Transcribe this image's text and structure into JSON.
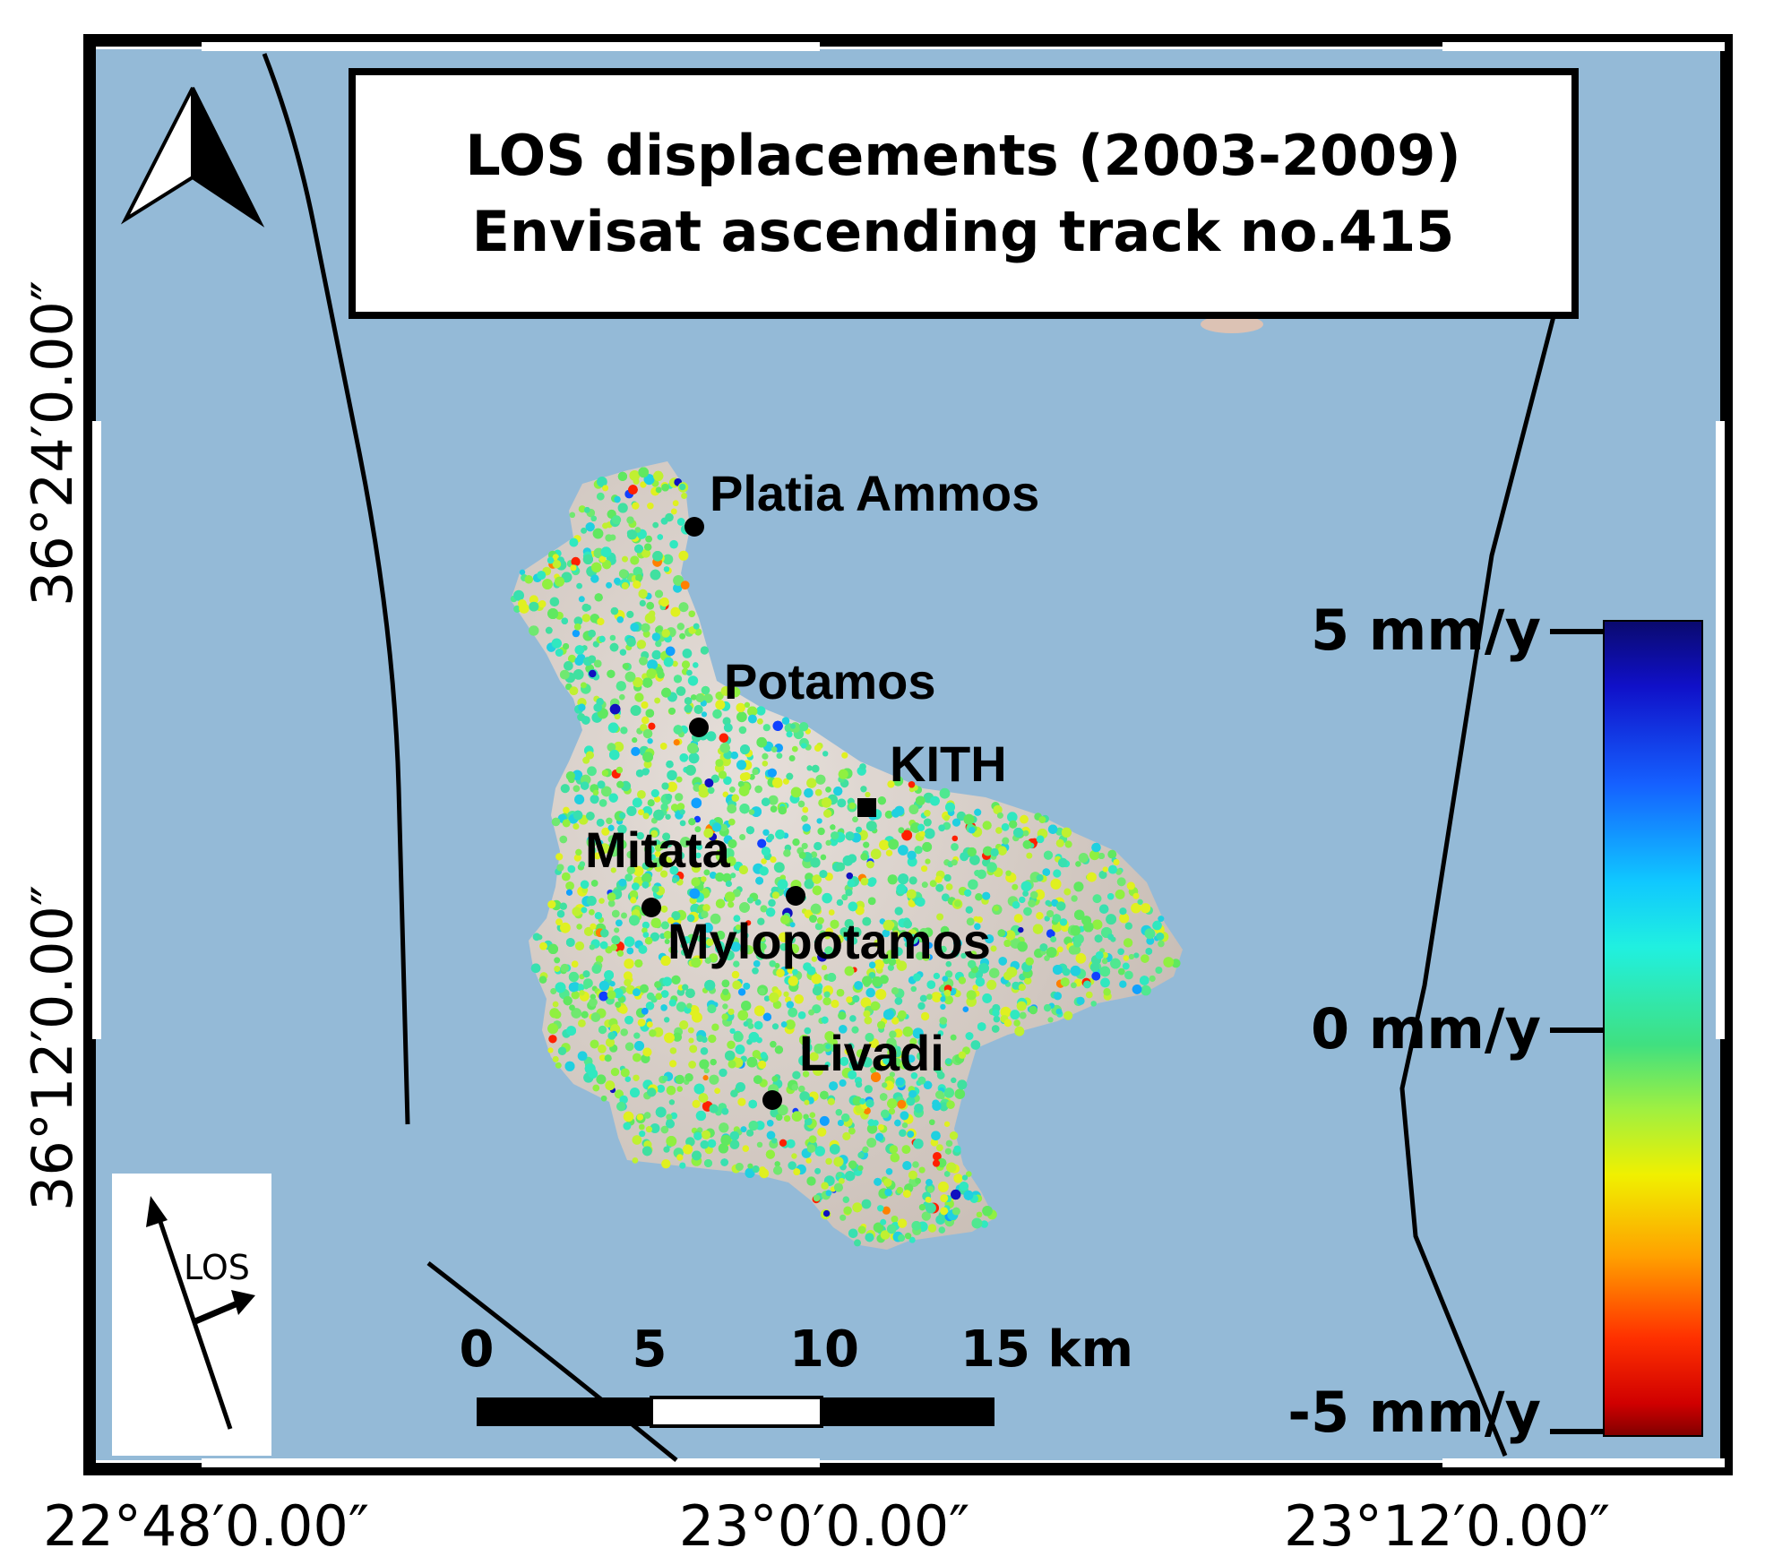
{
  "title": {
    "line1": "LOS displacements (2003-2009)",
    "line2": "Envisat ascending track no.415"
  },
  "colors": {
    "sea": "#94bad7",
    "frame": "#000000",
    "land_relief": "#d8cfc8"
  },
  "places": [
    {
      "name": "Platia Ammos",
      "marker": "circle"
    },
    {
      "name": "Potamos",
      "marker": "circle"
    },
    {
      "name": "KITH",
      "marker": "square"
    },
    {
      "name": "Mitata",
      "marker": "circle"
    },
    {
      "name": "Mylopotamos",
      "marker": "circle"
    },
    {
      "name": "Livadi",
      "marker": "circle"
    }
  ],
  "colorbar": {
    "max_label": "5 mm/y",
    "mid_label": "0 mm/y",
    "min_label": "-5 mm/y",
    "range": [
      -5,
      5
    ],
    "unit": "mm/y",
    "colormap": "jet reversed (blue = +5, red = -5)"
  },
  "scale_bar": {
    "ticks": [
      "0",
      "5",
      "10",
      "15 km"
    ]
  },
  "los_inset": {
    "label": "LOS"
  },
  "north_arrow": "north-arrow-icon",
  "coordinates": {
    "lon_labels": [
      "22°48′0.00″",
      "23°0′0.00″",
      "23°12′0.00″"
    ],
    "lat_labels": [
      "36°24′0.00″",
      "36°12′0.00″"
    ]
  }
}
